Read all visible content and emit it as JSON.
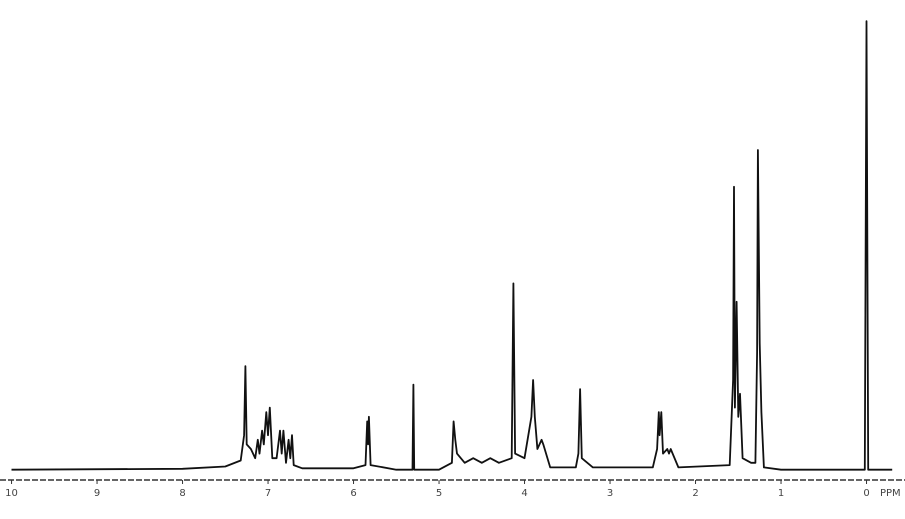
{
  "chart_data": {
    "type": "line",
    "x_label": "PPM",
    "x": [
      10.0,
      8.0,
      7.5,
      7.32,
      7.28,
      7.265,
      7.25,
      7.2,
      7.15,
      7.12,
      7.1,
      7.07,
      7.05,
      7.02,
      7.0,
      6.98,
      6.95,
      6.9,
      6.86,
      6.84,
      6.82,
      6.79,
      6.76,
      6.74,
      6.72,
      6.7,
      6.6,
      6.0,
      5.86,
      5.84,
      5.83,
      5.82,
      5.8,
      5.5,
      5.31,
      5.3,
      5.29,
      5.0,
      4.85,
      4.83,
      4.81,
      4.79,
      4.7,
      4.6,
      4.5,
      4.4,
      4.3,
      4.15,
      4.13,
      4.11,
      4.0,
      3.92,
      3.9,
      3.88,
      3.85,
      3.8,
      3.78,
      3.7,
      3.4,
      3.37,
      3.35,
      3.33,
      3.2,
      2.5,
      2.45,
      2.43,
      2.42,
      2.4,
      2.38,
      2.33,
      2.31,
      2.29,
      2.2,
      1.6,
      1.56,
      1.55,
      1.54,
      1.52,
      1.5,
      1.48,
      1.45,
      1.35,
      1.3,
      1.28,
      1.27,
      1.25,
      1.23,
      1.2,
      1.0,
      0.02,
      0.0,
      -0.02,
      -0.3
    ],
    "series": [
      {
        "color": "#111111",
        "values": [
          0.5,
          0.7,
          1.2,
          2.5,
          8,
          23,
          6,
          5,
          3,
          7,
          4,
          9,
          6,
          13,
          8,
          14,
          3,
          3,
          9,
          4,
          9,
          2,
          7,
          3,
          8,
          1.5,
          0.8,
          0.8,
          1.5,
          11,
          6,
          12,
          1.5,
          0.5,
          0.5,
          19,
          0.5,
          0.5,
          2,
          11,
          7,
          4,
          2,
          3,
          2,
          3,
          2,
          3,
          41,
          4,
          3,
          12,
          20,
          12,
          5,
          7,
          6,
          1,
          1,
          4,
          18,
          3,
          1,
          1,
          5,
          13,
          8,
          13,
          4,
          5,
          4,
          5,
          1,
          1.5,
          20,
          62,
          14,
          37,
          12,
          17,
          3,
          2,
          2,
          26,
          70,
          28,
          13,
          1,
          0.5,
          0.5,
          98,
          0.5,
          0.5
        ]
      }
    ],
    "xlim": [
      10.1,
      -0.45
    ],
    "ylim": [
      0,
      100
    ],
    "xticks": [
      10,
      9,
      8,
      7,
      6,
      5,
      4,
      3,
      2,
      1,
      0
    ]
  }
}
